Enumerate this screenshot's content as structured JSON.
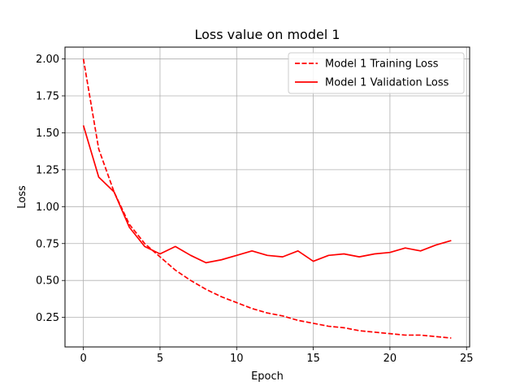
{
  "chart_data": {
    "type": "line",
    "title": "Loss value on model 1",
    "xlabel": "Epoch",
    "ylabel": "Loss",
    "xlim": [
      -1.2,
      25.2
    ],
    "ylim": [
      0.05,
      2.08
    ],
    "xticks": [
      0,
      5,
      10,
      15,
      20,
      25
    ],
    "yticks": [
      0.25,
      0.5,
      0.75,
      1.0,
      1.25,
      1.5,
      1.75,
      2.0
    ],
    "xtick_labels": [
      "0",
      "5",
      "10",
      "15",
      "20",
      "25"
    ],
    "ytick_labels": [
      "0.25",
      "0.50",
      "0.75",
      "1.00",
      "1.25",
      "1.50",
      "1.75",
      "2.00"
    ],
    "grid": true,
    "legend_position": "top-right",
    "x": [
      0,
      1,
      2,
      3,
      4,
      5,
      6,
      7,
      8,
      9,
      10,
      11,
      12,
      13,
      14,
      15,
      16,
      17,
      18,
      19,
      20,
      21,
      22,
      23,
      24
    ],
    "series": [
      {
        "name": "Model 1 Training Loss",
        "style": "dashed",
        "color": "#ff0000",
        "values": [
          2.0,
          1.39,
          1.1,
          0.88,
          0.75,
          0.66,
          0.57,
          0.5,
          0.44,
          0.39,
          0.35,
          0.31,
          0.28,
          0.26,
          0.23,
          0.21,
          0.19,
          0.18,
          0.16,
          0.15,
          0.14,
          0.13,
          0.13,
          0.12,
          0.11
        ]
      },
      {
        "name": "Model 1 Validation Loss",
        "style": "solid",
        "color": "#ff0000",
        "values": [
          1.55,
          1.2,
          1.1,
          0.86,
          0.73,
          0.68,
          0.73,
          0.67,
          0.62,
          0.64,
          0.67,
          0.7,
          0.67,
          0.66,
          0.7,
          0.63,
          0.67,
          0.68,
          0.66,
          0.68,
          0.69,
          0.72,
          0.7,
          0.74,
          0.77
        ]
      }
    ]
  }
}
